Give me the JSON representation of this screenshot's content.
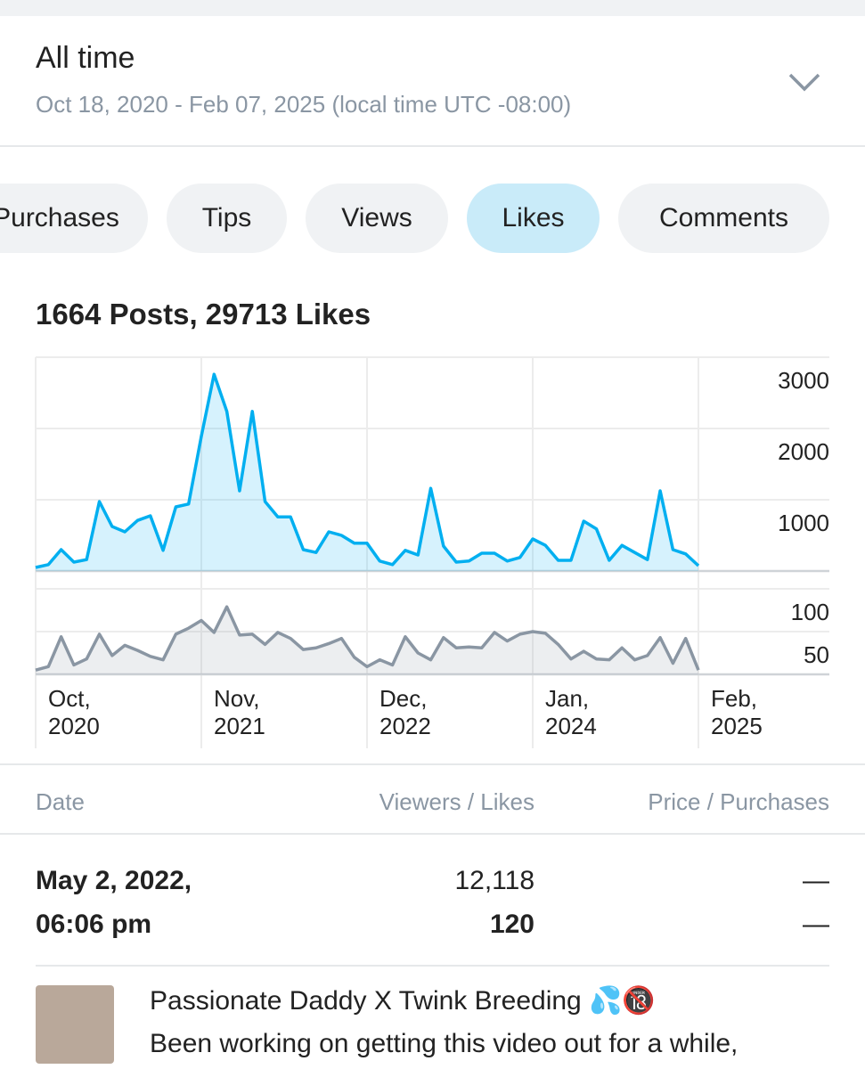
{
  "header": {
    "title": "All time",
    "subtitle": "Oct 18, 2020 - Feb 07, 2025 (local time UTC -08:00)"
  },
  "tabs": {
    "items": [
      "Purchases",
      "Tips",
      "Views",
      "Likes",
      "Comments"
    ],
    "active": 3
  },
  "summary": "1664 Posts, 29713 Likes",
  "chart_data": [
    {
      "type": "area",
      "name": "Likes",
      "color": "#00aff0",
      "categories": [
        "Oct, 2020",
        null,
        null,
        null,
        null,
        null,
        null,
        null,
        null,
        null,
        null,
        null,
        null,
        "Nov, 2021",
        null,
        null,
        null,
        null,
        null,
        null,
        null,
        null,
        null,
        null,
        null,
        null,
        "Dec, 2022",
        null,
        null,
        null,
        null,
        null,
        null,
        null,
        null,
        null,
        null,
        null,
        null,
        "Jan, 2024",
        null,
        null,
        null,
        null,
        null,
        null,
        null,
        null,
        null,
        null,
        null,
        null,
        "Feb, 2025"
      ],
      "values": [
        50,
        90,
        300,
        125,
        160,
        975,
        625,
        550,
        710,
        775,
        290,
        900,
        940,
        1890,
        2760,
        2240,
        1125,
        2240,
        975,
        760,
        760,
        300,
        260,
        550,
        500,
        390,
        390,
        140,
        90,
        290,
        225,
        1160,
        350,
        125,
        140,
        250,
        250,
        140,
        190,
        450,
        360,
        150,
        150,
        700,
        590,
        150,
        360,
        260,
        160,
        1125,
        300,
        240,
        75
      ],
      "ylim": [
        0,
        3000
      ],
      "yticks": [
        1000,
        2000,
        3000
      ],
      "grid": true
    },
    {
      "type": "area",
      "name": "Posts",
      "color": "#8a96a3",
      "values": [
        5,
        9,
        44,
        11,
        18,
        47,
        22,
        34,
        28,
        21,
        17,
        47,
        54,
        63,
        49,
        79,
        46,
        47,
        35,
        49,
        42,
        29,
        31,
        36,
        42,
        20,
        9,
        17,
        11,
        44,
        25,
        17,
        43,
        31,
        32,
        31,
        49,
        39,
        47,
        50,
        48,
        35,
        18,
        27,
        18,
        17,
        31,
        17,
        22,
        43,
        13,
        42,
        5
      ],
      "ylim": [
        0,
        100
      ],
      "yticks": [
        50,
        100
      ],
      "grid": true
    }
  ],
  "table": {
    "headers": [
      "Date",
      "Viewers / Likes",
      "Price / Purchases"
    ],
    "row": {
      "date": "May 2, 2022,",
      "time": "06:06 pm",
      "viewers": "12,118",
      "likes": "120",
      "price": "—",
      "purchases": "—"
    }
  },
  "post": {
    "title": "Passionate Daddy X Twink Breeding 💦🔞",
    "text": "Been working on getting this video out for a while,"
  }
}
